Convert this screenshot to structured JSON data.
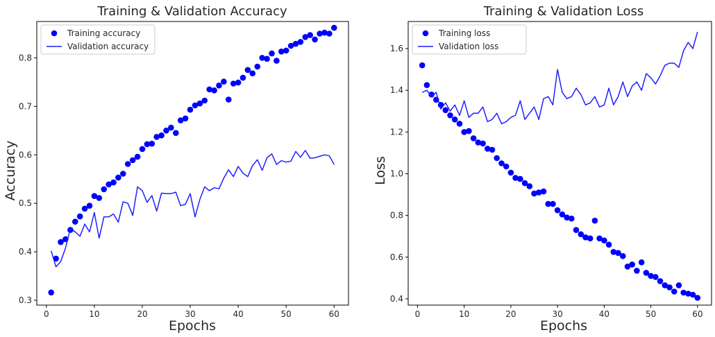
{
  "chart_data": [
    {
      "type": "line",
      "title": "Training & Validation Accuracy",
      "xlabel": "Epochs",
      "ylabel": "Accuracy",
      "xlim": [
        -2,
        63
      ],
      "ylim": [
        0.29,
        0.875
      ],
      "xticks": [
        0,
        10,
        20,
        30,
        40,
        50,
        60
      ],
      "yticks": [
        0.3,
        0.4,
        0.5,
        0.6,
        0.7,
        0.8
      ],
      "ytick_labels": [
        "0.3",
        "0.4",
        "0.5",
        "0.6",
        "0.7",
        "0.8"
      ],
      "grid": false,
      "legend": "top-left",
      "series": [
        {
          "name": "Training accuracy",
          "style": "dots",
          "color": "#0000ff",
          "x": [
            1,
            2,
            3,
            4,
            5,
            6,
            7,
            8,
            9,
            10,
            11,
            12,
            13,
            14,
            15,
            16,
            17,
            18,
            19,
            20,
            21,
            22,
            23,
            24,
            25,
            26,
            27,
            28,
            29,
            30,
            31,
            32,
            33,
            34,
            35,
            36,
            37,
            38,
            39,
            40,
            41,
            42,
            43,
            44,
            45,
            46,
            47,
            48,
            49,
            50,
            51,
            52,
            53,
            54,
            55,
            56,
            57,
            58,
            59,
            60
          ],
          "values": [
            0.316,
            0.386,
            0.42,
            0.426,
            0.445,
            0.462,
            0.473,
            0.489,
            0.495,
            0.515,
            0.511,
            0.529,
            0.539,
            0.543,
            0.553,
            0.561,
            0.581,
            0.589,
            0.596,
            0.612,
            0.622,
            0.623,
            0.637,
            0.64,
            0.65,
            0.656,
            0.645,
            0.671,
            0.675,
            0.693,
            0.702,
            0.706,
            0.712,
            0.735,
            0.733,
            0.743,
            0.751,
            0.714,
            0.747,
            0.749,
            0.759,
            0.775,
            0.768,
            0.782,
            0.8,
            0.798,
            0.809,
            0.794,
            0.813,
            0.815,
            0.825,
            0.829,
            0.833,
            0.843,
            0.847,
            0.838,
            0.85,
            0.852,
            0.85,
            0.862
          ]
        },
        {
          "name": "Validation accuracy",
          "style": "line",
          "color": "#1f1fff",
          "x": [
            1,
            2,
            3,
            4,
            5,
            6,
            7,
            8,
            9,
            10,
            11,
            12,
            13,
            14,
            15,
            16,
            17,
            18,
            19,
            20,
            21,
            22,
            23,
            24,
            25,
            26,
            27,
            28,
            29,
            30,
            31,
            32,
            33,
            34,
            35,
            36,
            37,
            38,
            39,
            40,
            41,
            42,
            43,
            44,
            45,
            46,
            47,
            48,
            49,
            50,
            51,
            52,
            53,
            54,
            55,
            56,
            57,
            58,
            59,
            60
          ],
          "values": [
            0.402,
            0.369,
            0.38,
            0.408,
            0.448,
            0.441,
            0.432,
            0.457,
            0.441,
            0.481,
            0.428,
            0.472,
            0.472,
            0.478,
            0.461,
            0.503,
            0.5,
            0.475,
            0.534,
            0.526,
            0.502,
            0.516,
            0.484,
            0.521,
            0.52,
            0.52,
            0.523,
            0.495,
            0.498,
            0.52,
            0.472,
            0.508,
            0.534,
            0.526,
            0.532,
            0.53,
            0.552,
            0.569,
            0.555,
            0.576,
            0.562,
            0.555,
            0.578,
            0.59,
            0.568,
            0.594,
            0.602,
            0.58,
            0.588,
            0.585,
            0.587,
            0.607,
            0.595,
            0.609,
            0.593,
            0.594,
            0.597,
            0.6,
            0.598,
            0.58
          ]
        }
      ]
    },
    {
      "type": "line",
      "title": "Training & Validation Loss",
      "xlabel": "Epochs",
      "ylabel": "Loss",
      "xlim": [
        -2,
        63
      ],
      "ylim": [
        0.37,
        1.73
      ],
      "xticks": [
        0,
        10,
        20,
        30,
        40,
        50,
        60
      ],
      "yticks": [
        0.4,
        0.6,
        0.8,
        1.0,
        1.2,
        1.4,
        1.6
      ],
      "ytick_labels": [
        "0.4",
        "0.6",
        "0.8",
        "1.0",
        "1.2",
        "1.4",
        "1.6"
      ],
      "grid": false,
      "legend": "top-left",
      "series": [
        {
          "name": "Training loss",
          "style": "dots",
          "color": "#0000ff",
          "x": [
            1,
            2,
            3,
            4,
            5,
            6,
            7,
            8,
            9,
            10,
            11,
            12,
            13,
            14,
            15,
            16,
            17,
            18,
            19,
            20,
            21,
            22,
            23,
            24,
            25,
            26,
            27,
            28,
            29,
            30,
            31,
            32,
            33,
            34,
            35,
            36,
            37,
            38,
            39,
            40,
            41,
            42,
            43,
            44,
            45,
            46,
            47,
            48,
            49,
            50,
            51,
            52,
            53,
            54,
            55,
            56,
            57,
            58,
            59,
            60
          ],
          "values": [
            1.52,
            1.425,
            1.38,
            1.355,
            1.33,
            1.305,
            1.28,
            1.26,
            1.24,
            1.2,
            1.205,
            1.17,
            1.15,
            1.145,
            1.12,
            1.115,
            1.075,
            1.05,
            1.035,
            1.005,
            0.98,
            0.975,
            0.955,
            0.94,
            0.905,
            0.91,
            0.915,
            0.855,
            0.855,
            0.825,
            0.805,
            0.79,
            0.785,
            0.73,
            0.71,
            0.695,
            0.69,
            0.775,
            0.69,
            0.68,
            0.66,
            0.625,
            0.62,
            0.605,
            0.555,
            0.565,
            0.535,
            0.575,
            0.525,
            0.51,
            0.505,
            0.485,
            0.465,
            0.455,
            0.435,
            0.465,
            0.43,
            0.425,
            0.42,
            0.405
          ]
        },
        {
          "name": "Validation loss",
          "style": "line",
          "color": "#1f1fff",
          "x": [
            1,
            2,
            3,
            4,
            5,
            6,
            7,
            8,
            9,
            10,
            11,
            12,
            13,
            14,
            15,
            16,
            17,
            18,
            19,
            20,
            21,
            22,
            23,
            24,
            25,
            26,
            27,
            28,
            29,
            30,
            31,
            32,
            33,
            34,
            35,
            36,
            37,
            38,
            39,
            40,
            41,
            42,
            43,
            44,
            45,
            46,
            47,
            48,
            49,
            50,
            51,
            52,
            53,
            54,
            55,
            56,
            57,
            58,
            59,
            60
          ],
          "values": [
            1.39,
            1.4,
            1.37,
            1.39,
            1.31,
            1.34,
            1.3,
            1.33,
            1.28,
            1.35,
            1.27,
            1.29,
            1.29,
            1.32,
            1.25,
            1.26,
            1.29,
            1.24,
            1.25,
            1.27,
            1.28,
            1.35,
            1.26,
            1.29,
            1.32,
            1.26,
            1.36,
            1.37,
            1.33,
            1.5,
            1.39,
            1.36,
            1.37,
            1.41,
            1.38,
            1.33,
            1.34,
            1.37,
            1.32,
            1.33,
            1.41,
            1.33,
            1.37,
            1.44,
            1.37,
            1.42,
            1.44,
            1.4,
            1.48,
            1.46,
            1.43,
            1.47,
            1.52,
            1.53,
            1.53,
            1.51,
            1.59,
            1.63,
            1.6,
            1.68
          ]
        }
      ]
    }
  ]
}
